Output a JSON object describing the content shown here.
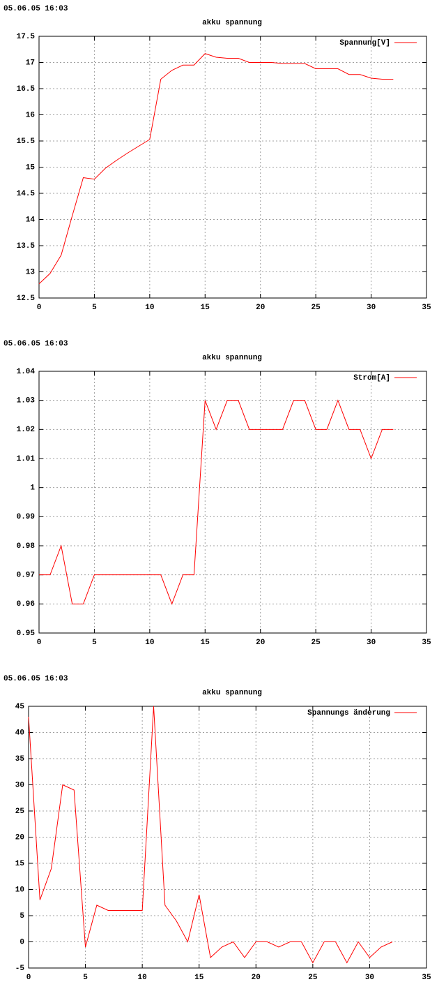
{
  "chart_data": [
    {
      "type": "line",
      "timestamp": "05.06.05 16:03",
      "title": "akku spannung",
      "x": [
        0,
        1,
        2,
        3,
        4,
        5,
        6,
        7,
        8,
        9,
        10,
        11,
        12,
        13,
        14,
        15,
        16,
        17,
        18,
        19,
        20,
        21,
        22,
        23,
        24,
        25,
        26,
        27,
        28,
        29,
        30,
        31,
        32
      ],
      "series": [
        {
          "name": "Spannung[V]",
          "color": "#ff0000",
          "values": [
            12.77,
            12.97,
            13.32,
            14.07,
            14.8,
            14.77,
            14.98,
            15.13,
            15.27,
            15.4,
            15.53,
            16.68,
            16.85,
            16.95,
            16.95,
            17.17,
            17.1,
            17.08,
            17.08,
            17.0,
            17.0,
            17.0,
            16.98,
            16.98,
            16.98,
            16.88,
            16.88,
            16.88,
            16.77,
            16.77,
            16.7,
            16.68,
            16.68
          ]
        }
      ],
      "xlim": [
        0,
        35
      ],
      "xticks": [
        0,
        5,
        10,
        15,
        20,
        25,
        30,
        35
      ],
      "ylim": [
        12.5,
        17.5
      ],
      "yticks": [
        12.5,
        13,
        13.5,
        14,
        14.5,
        15,
        15.5,
        16,
        16.5,
        17,
        17.5
      ],
      "grid": true,
      "legend": "upper-right"
    },
    {
      "type": "line",
      "timestamp": "05.06.05 16:03",
      "title": "akku spannung",
      "x": [
        0,
        1,
        2,
        3,
        4,
        5,
        6,
        7,
        8,
        9,
        10,
        11,
        12,
        13,
        14,
        15,
        16,
        17,
        18,
        19,
        20,
        21,
        22,
        23,
        24,
        25,
        26,
        27,
        28,
        29,
        30,
        31,
        32
      ],
      "series": [
        {
          "name": "Strom[A]",
          "color": "#ff0000",
          "values": [
            0.97,
            0.97,
            0.98,
            0.96,
            0.96,
            0.97,
            0.97,
            0.97,
            0.97,
            0.97,
            0.97,
            0.97,
            0.96,
            0.97,
            0.97,
            1.03,
            1.02,
            1.03,
            1.03,
            1.02,
            1.02,
            1.02,
            1.02,
            1.03,
            1.03,
            1.02,
            1.02,
            1.03,
            1.02,
            1.02,
            1.01,
            1.02,
            1.02
          ]
        }
      ],
      "xlim": [
        0,
        35
      ],
      "xticks": [
        0,
        5,
        10,
        15,
        20,
        25,
        30,
        35
      ],
      "ylim": [
        0.95,
        1.04
      ],
      "yticks": [
        0.95,
        0.96,
        0.97,
        0.98,
        0.99,
        1,
        1.01,
        1.02,
        1.03,
        1.04
      ],
      "grid": true,
      "legend": "upper-right"
    },
    {
      "type": "line",
      "timestamp": "05.06.05 16:03",
      "title": "akku spannung",
      "x": [
        0,
        1,
        2,
        3,
        4,
        5,
        6,
        7,
        8,
        9,
        10,
        11,
        12,
        13,
        14,
        15,
        16,
        17,
        18,
        19,
        20,
        21,
        22,
        23,
        24,
        25,
        26,
        27,
        28,
        29,
        30,
        31,
        32
      ],
      "series": [
        {
          "name": "Spannungs änderung",
          "color": "#ff0000",
          "values": [
            43,
            8,
            14,
            30,
            29,
            -1,
            7,
            6,
            6,
            6,
            6,
            45,
            7,
            4,
            0,
            9,
            -3,
            -1,
            0,
            -3,
            0,
            0,
            -1,
            0,
            0,
            -4,
            0,
            0,
            -4,
            0,
            -3,
            -1,
            0
          ]
        }
      ],
      "xlim": [
        0,
        35
      ],
      "xticks": [
        0,
        5,
        10,
        15,
        20,
        25,
        30,
        35
      ],
      "ylim": [
        -5,
        45
      ],
      "yticks": [
        -5,
        0,
        5,
        10,
        15,
        20,
        25,
        30,
        35,
        40,
        45
      ],
      "grid": true,
      "legend": "upper-right"
    }
  ]
}
